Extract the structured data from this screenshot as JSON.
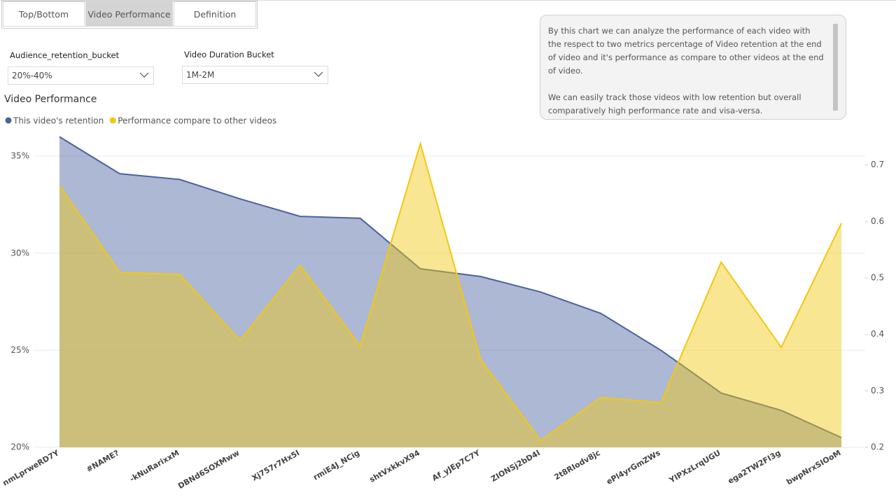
{
  "tabs": [
    "Top/Bottom",
    "Video Performance",
    "Definition"
  ],
  "filters": [
    {
      "label": "Audience_retention_bucket",
      "value": "20%-40%"
    },
    {
      "label": "Video Duration Bucket",
      "value": "1M-2M"
    }
  ],
  "note": [
    "By this chart we can analyze the performance of each video with the respect to two metrics percentage of Video retention at the end of video and it's performance as compare to other videos at the end of video.",
    "We can easily track those videos with low retention but overall comparatively high performance rate and visa-versa."
  ],
  "chart_data": {
    "type": "area",
    "title": "Video Performance",
    "categories": [
      "nmLprweRD7Y",
      "#NAME?",
      "-kNuRarixxM",
      "DBNd6SOXMww",
      "Xj757r7Hx5I",
      "rmiE4J_NCig",
      "shtVxkkvX94",
      "Af_yJEp7C7Y",
      "ZIONSj2bD4I",
      "2t8RIodv8jc",
      "ePl4yrGmZWs",
      "YIPXzLrqUGU",
      "ega2TW2FI3g",
      "bwpNrxSIOoM"
    ],
    "series": [
      {
        "name": "This video's retention",
        "color": "#4a62a0",
        "values": [
          36.0,
          34.1,
          33.8,
          32.8,
          31.9,
          31.8,
          29.2,
          28.8,
          28.0,
          26.9,
          25.0,
          22.8,
          21.9,
          20.5
        ]
      },
      {
        "name": "Performance compare to other videos",
        "color": "#f2c80f",
        "axis": "y2",
        "values": [
          0.663,
          0.51,
          0.506,
          0.389,
          0.522,
          0.379,
          0.738,
          0.355,
          0.212,
          0.288,
          0.279,
          0.528,
          0.377,
          0.597
        ]
      }
    ],
    "ylim": [
      20,
      36
    ],
    "yticks": [
      {
        "value": 20,
        "label": "20%"
      },
      {
        "value": 25,
        "label": "25%"
      },
      {
        "value": 30,
        "label": "30%"
      },
      {
        "value": 35,
        "label": "35%"
      }
    ],
    "y2lim": [
      0.2,
      0.75
    ],
    "y2ticks": [
      0.2,
      0.3,
      0.4,
      0.5,
      0.6,
      0.7
    ],
    "grid": true
  }
}
